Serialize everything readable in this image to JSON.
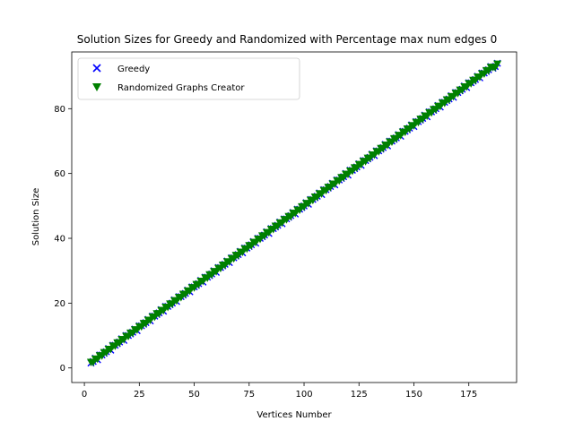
{
  "chart_data": {
    "type": "scatter",
    "title": "Solution Sizes for Greedy and Randomized with Percentage max num edges 0",
    "xlabel": "Vertices Number",
    "ylabel": "Solution Size",
    "xlim": [
      -5.75,
      196.75
    ],
    "ylim": [
      -4.5,
      97.5
    ],
    "xticks": [
      0,
      25,
      50,
      75,
      100,
      125,
      150,
      175
    ],
    "yticks": [
      0,
      20,
      40,
      60,
      80
    ],
    "grid": false,
    "legend_position": "upper-left",
    "x_range": [
      3,
      188
    ],
    "series": [
      {
        "name": "Greedy",
        "marker": "x",
        "color": "#0000ff",
        "slope": 0.4973,
        "intercept": 0.5
      },
      {
        "name": "Randomized Graphs Creator",
        "marker": "triangle-down",
        "color": "#008000",
        "slope": 0.4973,
        "intercept": 0.5
      }
    ]
  }
}
